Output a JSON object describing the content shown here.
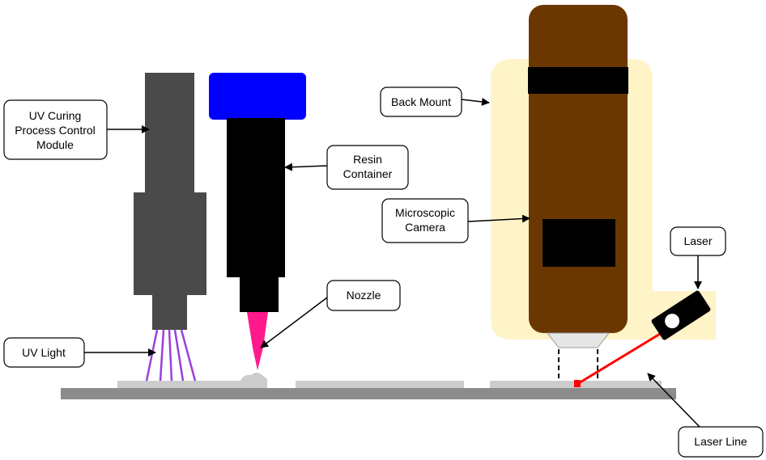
{
  "labels": {
    "uv_curing": [
      "UV Curing",
      "Process Control",
      "Module"
    ],
    "uv_light": [
      "UV Light"
    ],
    "resin_container": [
      "Resin",
      "Container"
    ],
    "nozzle": [
      "Nozzle"
    ],
    "back_mount": [
      "Back Mount"
    ],
    "microscopic_camera": [
      "Microscopic",
      "Camera"
    ],
    "laser": [
      "Laser"
    ],
    "laser_line": [
      "Laser Line"
    ]
  },
  "colors": {
    "uv_module": "#4a4a4a",
    "uv_rays": "#9b3fe0",
    "resin_cap": "#0000ff",
    "resin_body": "#000000",
    "nozzle": "#ff1a8c",
    "back_mount": "#fff3c8",
    "camera_body": "#6b3700",
    "camera_window": "#000000",
    "laser_beam": "#ff0000",
    "stage": "#8c8c8c",
    "substrate": "#cccccc"
  }
}
